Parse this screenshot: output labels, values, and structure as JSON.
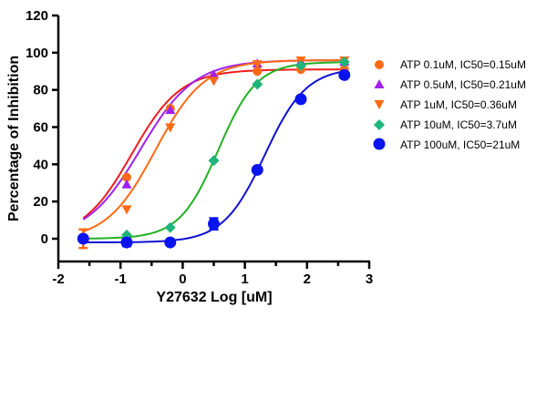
{
  "chart_data": {
    "type": "line",
    "title": "",
    "xlabel": "Y27632 Log [uM]",
    "ylabel": "Percentage of Inhibition",
    "xlim": [
      -2,
      3
    ],
    "ylim": [
      -12,
      120
    ],
    "x_ticks": [
      -2,
      -1,
      0,
      1,
      2,
      3
    ],
    "y_ticks": [
      0,
      20,
      40,
      60,
      80,
      100,
      120
    ],
    "grid": false,
    "legend_position": "right",
    "x": [
      -1.6,
      -0.9,
      -0.2,
      0.5,
      1.2,
      1.9,
      2.6
    ],
    "series": [
      {
        "name": "ATP 0.1uM, IC50=0.15uM",
        "marker": "circle",
        "marker_color": "#FF6A13",
        "line_color": "#EE1C1C",
        "values": [
          0,
          33,
          70,
          87,
          90,
          91,
          91
        ],
        "logIC50": -0.82,
        "bottom": 0,
        "top": 91,
        "hill": 1.1
      },
      {
        "name": "ATP 0.5uM, IC50=0.21uM",
        "marker": "triangle-up",
        "marker_color": "#A020F0",
        "line_color": "#A020F0",
        "values": [
          0,
          29,
          69,
          88,
          94,
          95,
          95
        ],
        "logIC50": -0.68,
        "bottom": 0,
        "top": 96,
        "hill": 1.0
      },
      {
        "name": "ATP 1uM, IC50=0.36uM",
        "marker": "triangle-down",
        "marker_color": "#FF6A13",
        "line_color": "#FF6A13",
        "values": [
          0,
          16,
          60,
          85,
          94,
          96,
          96
        ],
        "logIC50": -0.44,
        "bottom": -1,
        "top": 96,
        "hill": 1.1
      },
      {
        "name": "ATP 10uM, IC50=3.7uM",
        "marker": "diamond",
        "marker_color": "#1FB57A",
        "line_color": "#22B022",
        "values": [
          0,
          2,
          6,
          42,
          83,
          93,
          95
        ],
        "logIC50": 0.57,
        "bottom": 0,
        "top": 95,
        "hill": 1.4
      },
      {
        "name": "ATP 100uM, IC50=21uM",
        "marker": "circle-large",
        "marker_color": "#0A14F0",
        "line_color": "#1010D0",
        "values": [
          0,
          -2,
          -2,
          8,
          37,
          75,
          88
        ],
        "logIC50": 1.32,
        "bottom": -2,
        "top": 92,
        "hill": 1.3
      }
    ],
    "error_bars": [
      {
        "series": "ATP 1uM, IC50=0.36uM",
        "x": -1.6,
        "low": -5,
        "high": 5
      },
      {
        "series": "ATP 100uM, IC50=21uM",
        "x": -0.9,
        "low": -4,
        "high": 0
      },
      {
        "series": "ATP 100uM, IC50=21uM",
        "x": 0.5,
        "low": 5,
        "high": 11
      }
    ]
  },
  "axes": {
    "x_title": "Y27632 Log [uM]",
    "y_title": "Percentage of Inhibition",
    "x_tick_labels": [
      "-2",
      "-1",
      "0",
      "1",
      "2",
      "3"
    ],
    "y_tick_labels": [
      "0",
      "20",
      "40",
      "60",
      "80",
      "100",
      "120"
    ]
  },
  "legend": {
    "items": [
      {
        "label": "ATP 0.1uM, IC50=0.15uM"
      },
      {
        "label": "ATP 0.5uM, IC50=0.21uM"
      },
      {
        "label": "ATP 1uM, IC50=0.36uM"
      },
      {
        "label": "ATP 10uM, IC50=3.7uM"
      },
      {
        "label": "ATP 100uM, IC50=21uM"
      }
    ]
  }
}
